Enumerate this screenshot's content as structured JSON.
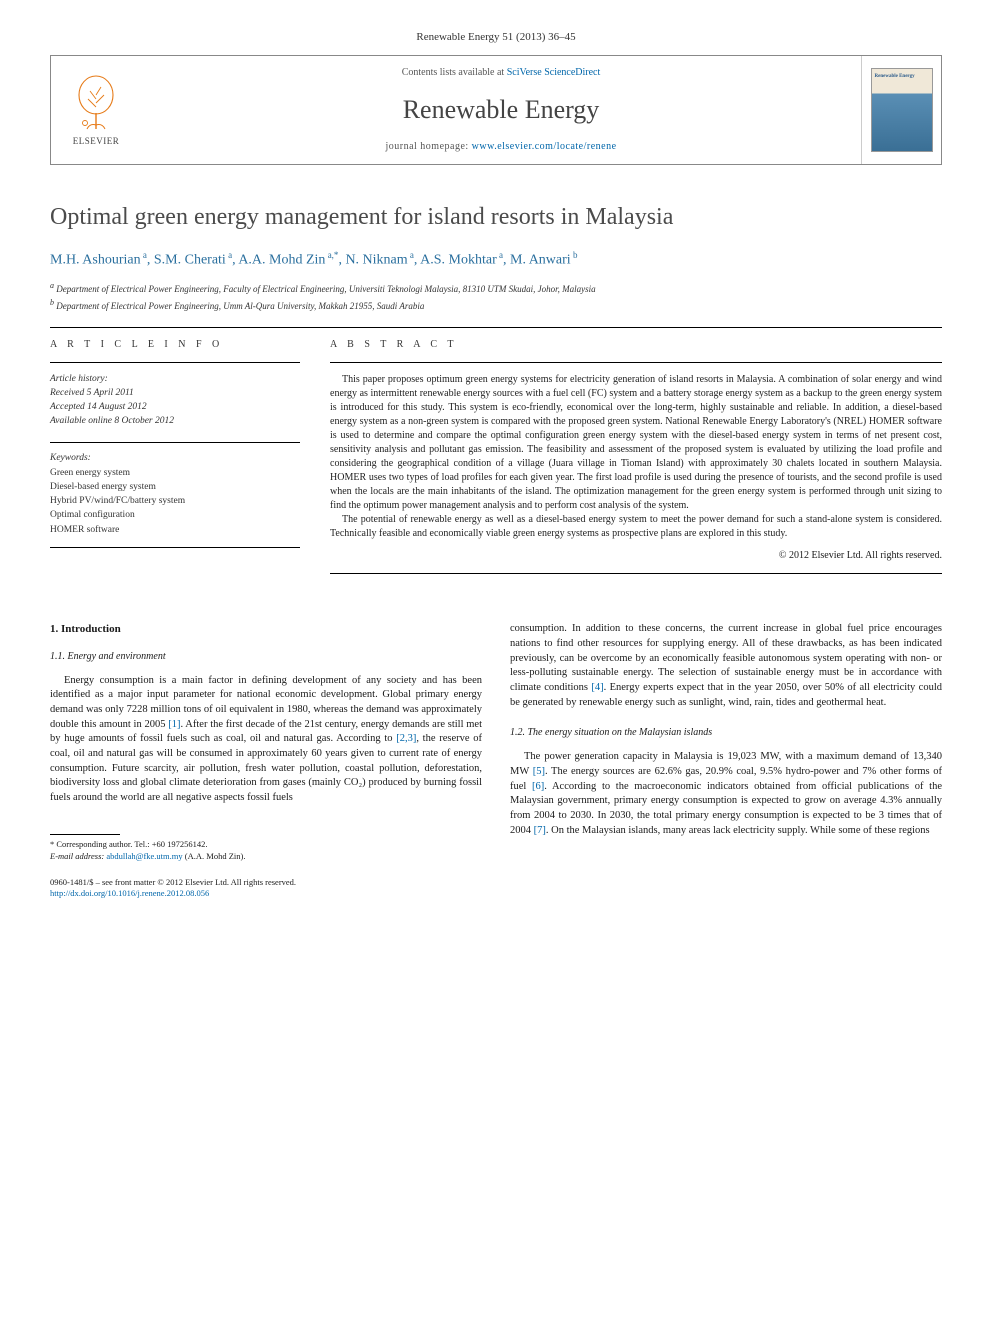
{
  "journal_ref": "Renewable Energy 51 (2013) 36–45",
  "masthead": {
    "contents_prefix": "Contents lists available at ",
    "contents_link": "SciVerse ScienceDirect",
    "journal_title": "Renewable Energy",
    "homepage_prefix": "journal homepage: ",
    "homepage_url": "www.elsevier.com/locate/renene",
    "elsevier_label": "ELSEVIER",
    "cover_title": "Renewable Energy"
  },
  "title": "Optimal green energy management for island resorts in Malaysia",
  "authors_html": "M.H. Ashourian|a|, S.M. Cherati|a|, A.A. Mohd Zin|a,*|, N. Niknam|a|, A.S. Mokhtar|a|, M. Anwari|b|",
  "authors": [
    {
      "name": "M.H. Ashourian",
      "sup": "a"
    },
    {
      "name": "S.M. Cherati",
      "sup": "a"
    },
    {
      "name": "A.A. Mohd Zin",
      "sup": "a,*"
    },
    {
      "name": "N. Niknam",
      "sup": "a"
    },
    {
      "name": "A.S. Mokhtar",
      "sup": "a"
    },
    {
      "name": "M. Anwari",
      "sup": "b"
    }
  ],
  "affiliations": [
    {
      "sup": "a",
      "text": "Department of Electrical Power Engineering, Faculty of Electrical Engineering, Universiti Teknologi Malaysia, 81310 UTM Skudai, Johor, Malaysia"
    },
    {
      "sup": "b",
      "text": "Department of Electrical Power Engineering, Umm Al-Qura University, Makkah 21955, Saudi Arabia"
    }
  ],
  "article_info": {
    "label": "A R T I C L E   I N F O",
    "history_label": "Article history:",
    "received": "Received 5 April 2011",
    "accepted": "Accepted 14 August 2012",
    "online": "Available online 8 October 2012",
    "keywords_label": "Keywords:",
    "keywords": [
      "Green energy system",
      "Diesel-based energy system",
      "Hybrid PV/wind/FC/battery system",
      "Optimal configuration",
      "HOMER software"
    ]
  },
  "abstract": {
    "label": "A B S T R A C T",
    "para1": "This paper proposes optimum green energy systems for electricity generation of island resorts in Malaysia. A combination of solar energy and wind energy as intermittent renewable energy sources with a fuel cell (FC) system and a battery storage energy system as a backup to the green energy system is introduced for this study. This system is eco-friendly, economical over the long-term, highly sustainable and reliable. In addition, a diesel-based energy system as a non-green system is compared with the proposed green system. National Renewable Energy Laboratory's (NREL) HOMER software is used to determine and compare the optimal configuration green energy system with the diesel-based energy system in terms of net present cost, sensitivity analysis and pollutant gas emission. The feasibility and assessment of the proposed system is evaluated by utilizing the load profile and considering the geographical condition of a village (Juara village in Tioman Island) with approximately 30 chalets located in southern Malaysia. HOMER uses two types of load profiles for each given year. The first load profile is used during the presence of tourists, and the second profile is used when the locals are the main inhabitants of the island. The optimization management for the green energy system is performed through unit sizing to find the optimum power management analysis and to perform cost analysis of the system.",
    "para2": "The potential of renewable energy as well as a diesel-based energy system to meet the power demand for such a stand-alone system is considered. Technically feasible and economically viable green energy systems as prospective plans are explored in this study.",
    "copyright": "© 2012 Elsevier Ltd. All rights reserved."
  },
  "body": {
    "sec1": "1. Introduction",
    "sec11": "1.1. Energy and environment",
    "p1a": "Energy consumption is a main factor in defining development of any society and has been identified as a major input parameter for national economic development. Global primary energy demand was only 7228 million tons of oil equivalent in 1980, whereas the demand was approximately double this amount in 2005 ",
    "p1b": ". After the first decade of the 21st century, energy demands are still met by huge amounts of fossil fuels such as coal, oil and natural gas. According to ",
    "p1c": ", the reserve of coal, oil and natural gas will be consumed in approximately 60 years given to current rate of energy consumption. Future scarcity, air pollution, fresh water pollution, coastal pollution, deforestation, biodiversity loss and global climate deterioration from gases (mainly CO₂) produced by burning fossil fuels around the world are all negative aspects fossil fuels",
    "ref1": "[1]",
    "ref23": "[2,3]",
    "p2a": "consumption. In addition to these concerns, the current increase in global fuel price encourages nations to find other resources for supplying energy. All of these drawbacks, as has been indicated previously, can be overcome by an economically feasible autonomous system operating with non- or less-polluting sustainable energy. The selection of sustainable energy must be in accordance with climate conditions ",
    "p2b": ". Energy experts expect that in the year 2050, over 50% of all electricity could be generated by renewable energy such as sunlight, wind, rain, tides and geothermal heat.",
    "ref4": "[4]",
    "sec12": "1.2. The energy situation on the Malaysian islands",
    "p3a": "The power generation capacity in Malaysia is 19,023 MW, with a maximum demand of 13,340 MW ",
    "p3b": ". The energy sources are 62.6% gas, 20.9% coal, 9.5% hydro-power and 7% other forms of fuel ",
    "p3c": ". According to the macroeconomic indicators obtained from official publications of the Malaysian government, primary energy consumption is expected to grow on average 4.3% annually from 2004 to 2030. In 2030, the total primary energy consumption is expected to be 3 times that of 2004 ",
    "p3d": ". On the Malaysian islands, many areas lack electricity supply. While some of these regions",
    "ref5": "[5]",
    "ref6": "[6]",
    "ref7": "[7]"
  },
  "footnote": {
    "corr_label": "* Corresponding author. Tel.: +60 197256142.",
    "email_label": "E-mail address:",
    "email": "abdullah@fke.utm.my",
    "email_tail": " (A.A. Mohd Zin)."
  },
  "footer": {
    "issn_line": "0960-1481/$ – see front matter © 2012 Elsevier Ltd. All rights reserved.",
    "doi": "http://dx.doi.org/10.1016/j.renene.2012.08.056"
  },
  "colors": {
    "link": "#0066aa",
    "author": "#2a6f9e",
    "title_gray": "#4b4b4b"
  }
}
